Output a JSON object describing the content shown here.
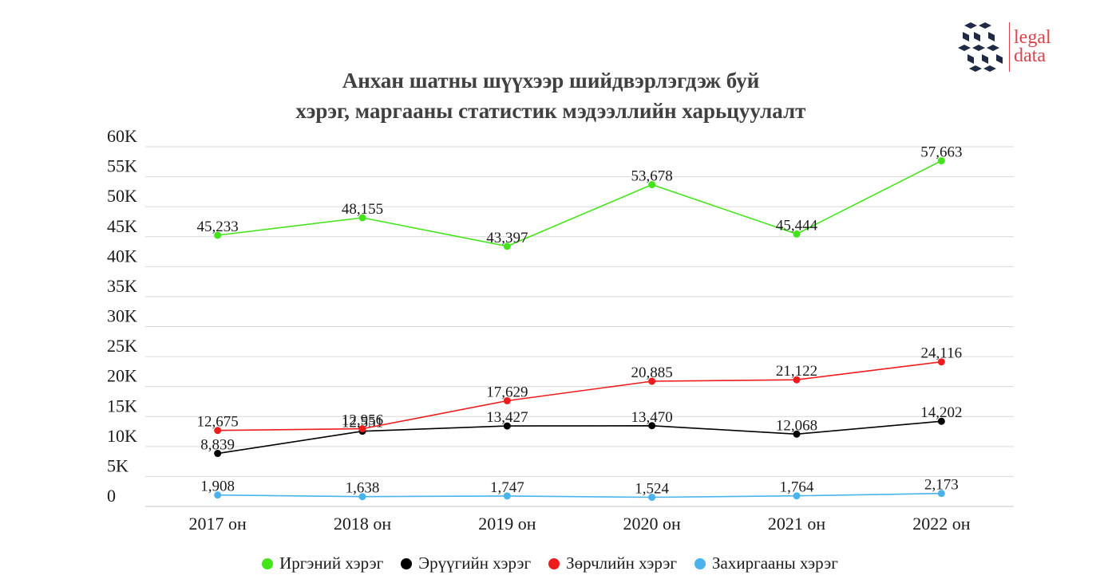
{
  "logo": {
    "line1": "legal",
    "line2": "data",
    "mark_color": "#1f2a44",
    "text_color": "#d9434c"
  },
  "chart_data": {
    "type": "line",
    "title": "Анхан шатны шүүхээр шийдвэрлэгдэж буй",
    "subtitle": "хэрэг, маргааны статистик мэдээллийн харьцуулалт",
    "categories": [
      "2017 он",
      "2018 он",
      "2019 он",
      "2020 он",
      "2021 он",
      "2022 он"
    ],
    "ylim": [
      0,
      60000
    ],
    "yticks": [
      0,
      5000,
      10000,
      15000,
      20000,
      25000,
      30000,
      35000,
      40000,
      45000,
      50000,
      55000,
      60000
    ],
    "ytick_labels": [
      "0",
      "5K",
      "10K",
      "15K",
      "20K",
      "25K",
      "30K",
      "35K",
      "40K",
      "45K",
      "50K",
      "55K",
      "60K"
    ],
    "grid": true,
    "legend_position": "bottom",
    "series": [
      {
        "name": "Иргэний хэрэг",
        "color": "#43e51a",
        "values": [
          45233,
          48155,
          43397,
          53678,
          45444,
          57663
        ],
        "labels": [
          "45,233",
          "48,155",
          "43,397",
          "53,678",
          "45,444",
          "57,663"
        ]
      },
      {
        "name": "Эрүүгийн хэрэг",
        "color": "#000000",
        "values": [
          8839,
          12551,
          13427,
          13470,
          12068,
          14202
        ],
        "labels": [
          "8,839",
          "12,551",
          "13,427",
          "13,470",
          "12,068",
          "14,202"
        ]
      },
      {
        "name": "Зөрчлийн хэрэг",
        "color": "#ee1c1c",
        "values": [
          12675,
          12956,
          17629,
          20885,
          21122,
          24116
        ],
        "labels": [
          "12,675",
          "12,956",
          "17,629",
          "20,885",
          "21,122",
          "24,116"
        ]
      },
      {
        "name": "Захиргааны хэрэг",
        "color": "#4ab3ec",
        "values": [
          1908,
          1638,
          1747,
          1524,
          1764,
          2173
        ],
        "labels": [
          "1,908",
          "1,638",
          "1,747",
          "1,524",
          "1,764",
          "2,173"
        ]
      }
    ]
  }
}
